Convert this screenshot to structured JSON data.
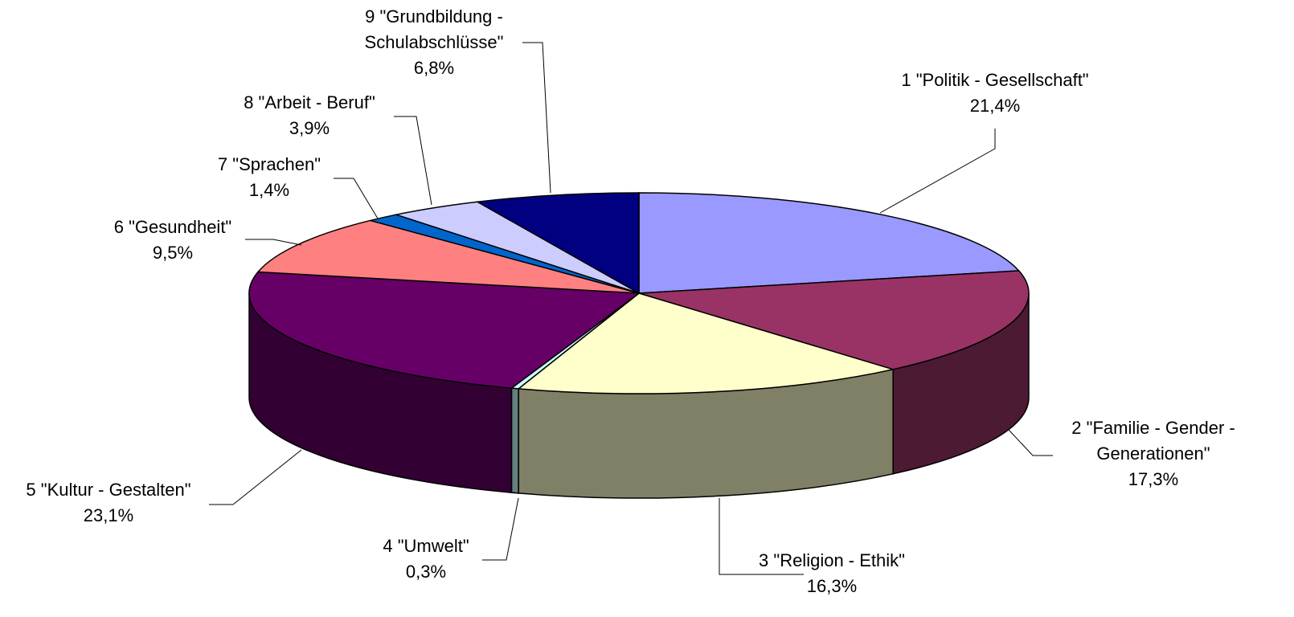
{
  "chart_data": {
    "type": "pie3d",
    "categories": [
      "1 \"Politik - Gesellschaft\"",
      "2 \"Familie - Gender - Generationen\"",
      "3 \"Religion - Ethik\"",
      "4 \"Umwelt\"",
      "5 \"Kultur - Gestalten\"",
      "6 \"Gesundheit\"",
      "7 \"Sprachen\"",
      "8 \"Arbeit - Beruf\"",
      "9 \"Grundbildung - Schulabschlüsse\""
    ],
    "values": [
      21.4,
      17.3,
      16.3,
      0.3,
      23.1,
      9.5,
      1.4,
      3.9,
      6.8
    ],
    "value_labels": [
      "21,4%",
      "17,3%",
      "16,3%",
      "0,3%",
      "23,1%",
      "9,5%",
      "1,4%",
      "3,9%",
      "6,8%"
    ],
    "colors": [
      "#9999ff",
      "#993366",
      "#ffffcc",
      "#ccffff",
      "#660066",
      "#ff8080",
      "#0066cc",
      "#ccccff",
      "#000080"
    ]
  }
}
